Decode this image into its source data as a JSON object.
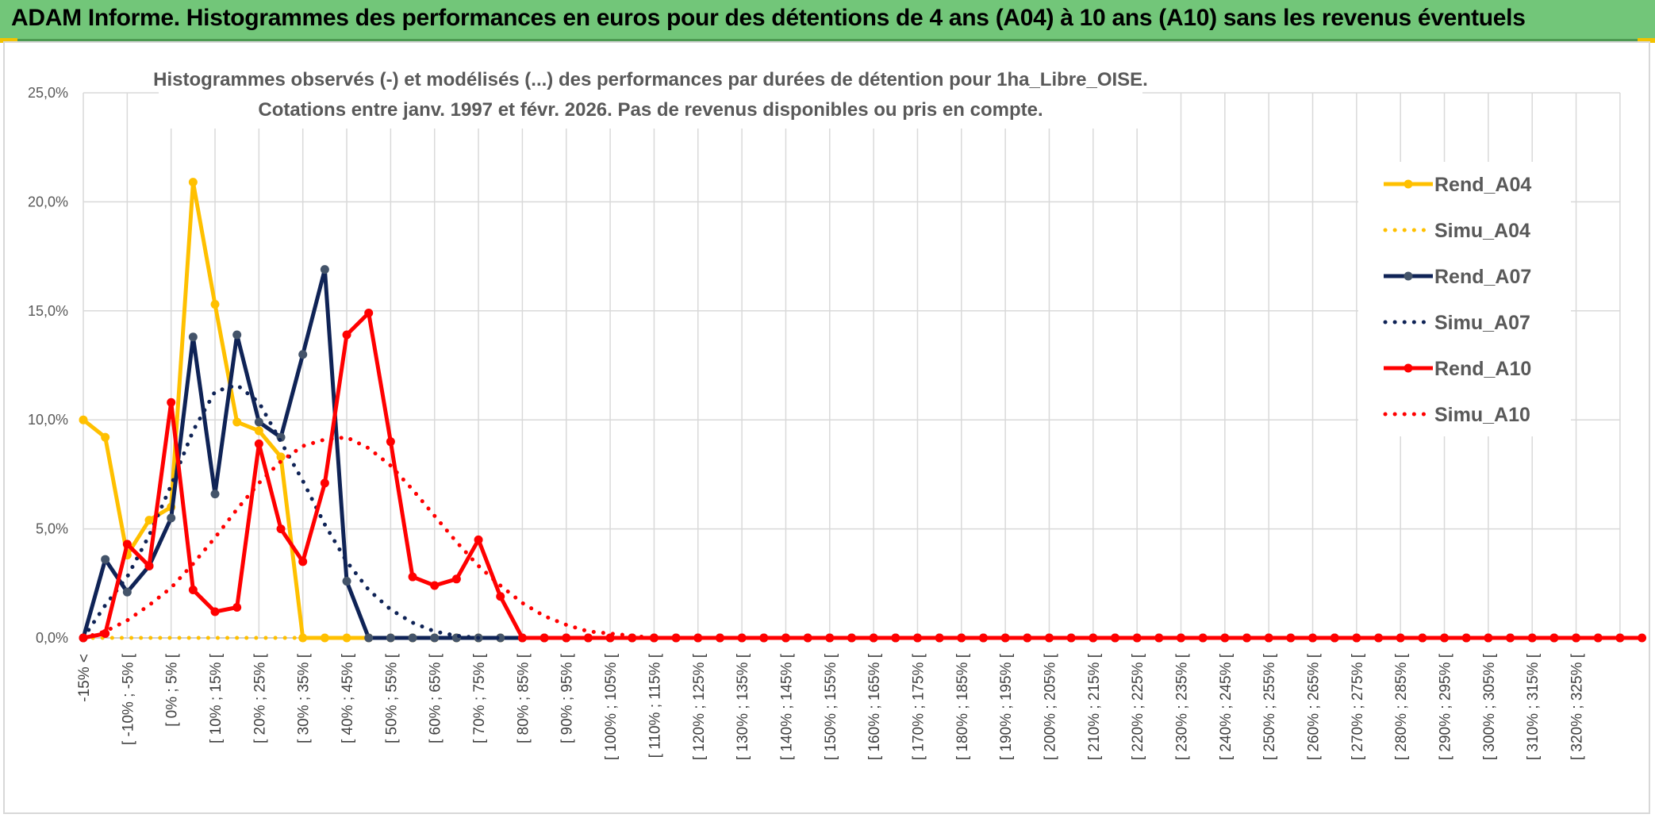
{
  "header": {
    "title": "ADAM Informe. Histogrammes des performances en euros pour des détentions de 4 ans (A04) à 10 ans (A10) sans les revenus éventuels"
  },
  "colors": {
    "header_bg": "#72c679",
    "A04": "#ffc000",
    "A07": "#0f2356",
    "A07_marker": "#44546a",
    "A10": "#ff0000",
    "grid": "#d9d9d9"
  },
  "chart_data": {
    "type": "line",
    "title_lines": [
      "Histogrammes observés (-) et modélisés (...) des performances par durées de détention pour 1ha_Libre_OISE.",
      "Cotations entre janv. 1997 et févr. 2026. Pas de revenus disponibles ou pris en compte."
    ],
    "ylim": [
      0,
      25
    ],
    "y_ticks": [
      0,
      5,
      10,
      15,
      20,
      25
    ],
    "y_tick_labels": [
      "0,0%",
      "5,0%",
      "10,0%",
      "15,0%",
      "20,0%",
      "25,0%"
    ],
    "x_labels": [
      "-15% <",
      "",
      "[ -10% ; -5% [",
      "",
      "[ 0% ; 5% [",
      "",
      "[ 10% ; 15% [",
      "",
      "[ 20% ; 25% [",
      "",
      "[ 30% ; 35% [",
      "",
      "[ 40% ; 45% [",
      "",
      "[ 50% ; 55% [",
      "",
      "[ 60% ; 65% [",
      "",
      "[ 70% ; 75% [",
      "",
      "[ 80% ; 85% [",
      "",
      "[ 90% ; 95% [",
      "",
      "[ 100% ; 105% [",
      "",
      "[ 110% ; 115% [",
      "",
      "[ 120% ; 125% [",
      "",
      "[ 130% ; 135% [",
      "",
      "[ 140% ; 145% [",
      "",
      "[ 150% ; 155% [",
      "",
      "[ 160% ; 165% [",
      "",
      "[ 170% ; 175% [",
      "",
      "[ 180% ; 185% [",
      "",
      "[ 190% ; 195% [",
      "",
      "[ 200% ; 205% [",
      "",
      "[ 210% ; 215% [",
      "",
      "[ 220% ; 225% [",
      "",
      "[ 230% ; 235% [",
      "",
      "[ 240% ; 245% [",
      "",
      "[ 250% ; 255% [",
      "",
      "[ 260% ; 265% [",
      "",
      "[ 270% ; 275% [",
      "",
      "[ 280% ; 285% [",
      "",
      "[ 290% ; 295% [",
      "",
      "[ 300% ; 305% [",
      "",
      "[ 310% ; 315% [",
      "",
      "[ 320% ; 325% [",
      "",
      ""
    ],
    "legend": [
      "Rend_A04",
      "Simu_A04",
      "Rend_A07",
      "Simu_A07",
      "Rend_A10",
      "Simu_A10"
    ],
    "series": [
      {
        "name": "Rend_A04",
        "style": "solid",
        "color": "#ffc000",
        "values": [
          10,
          9.2,
          3.8,
          5.4,
          6,
          20.9,
          15.3,
          9.9,
          9.5,
          8.3,
          0,
          0,
          0,
          0
        ]
      },
      {
        "name": "Simu_A04",
        "style": "dotted",
        "color": "#ffc000",
        "values": [
          0,
          0,
          0,
          0,
          0,
          0,
          0,
          0,
          0,
          0,
          0,
          0,
          0,
          0,
          0,
          0,
          0,
          0,
          0,
          0,
          0
        ]
      },
      {
        "name": "Rend_A07",
        "style": "solid",
        "color": "#0f2356",
        "values": [
          0,
          3.6,
          2.1,
          3.3,
          5.5,
          13.8,
          6.6,
          13.9,
          9.9,
          9.2,
          13,
          16.9,
          2.6,
          0,
          0,
          0,
          0,
          0,
          0,
          0
        ]
      },
      {
        "name": "Simu_A07",
        "style": "dotted",
        "color": "#0f2356",
        "values": [
          0,
          1.5,
          2.8,
          4.7,
          7.0,
          9.5,
          11.3,
          11.6,
          10.8,
          9.0,
          7.2,
          5.2,
          3.5,
          2.2,
          1.3,
          0.7,
          0.3,
          0.1,
          0,
          0,
          0,
          0
        ]
      },
      {
        "name": "Rend_A10",
        "style": "solid",
        "color": "#ff0000",
        "values": [
          0,
          0.2,
          4.3,
          3.3,
          10.8,
          2.2,
          1.2,
          1.4,
          8.9,
          5,
          3.5,
          7.1,
          13.9,
          14.9,
          9,
          2.8,
          2.4,
          2.7,
          4.5,
          1.9,
          0,
          0,
          0,
          0,
          0,
          0,
          0,
          0,
          0,
          0,
          0,
          0,
          0,
          0,
          0,
          0,
          0,
          0,
          0,
          0,
          0,
          0,
          0,
          0,
          0,
          0,
          0,
          0,
          0,
          0,
          0,
          0,
          0,
          0,
          0,
          0,
          0,
          0,
          0,
          0,
          0,
          0,
          0,
          0,
          0,
          0,
          0,
          0,
          0,
          0,
          0,
          0
        ]
      },
      {
        "name": "Simu_A10",
        "style": "dotted",
        "color": "#ff0000",
        "values": [
          0,
          0.3,
          0.8,
          1.5,
          2.3,
          3.4,
          4.6,
          5.9,
          7.1,
          8.1,
          8.8,
          9.1,
          9.2,
          8.7,
          7.9,
          6.8,
          5.6,
          4.4,
          3.3,
          2.4,
          1.6,
          1.0,
          0.6,
          0.3,
          0.2,
          0.1,
          0,
          0,
          0,
          0
        ]
      }
    ]
  }
}
